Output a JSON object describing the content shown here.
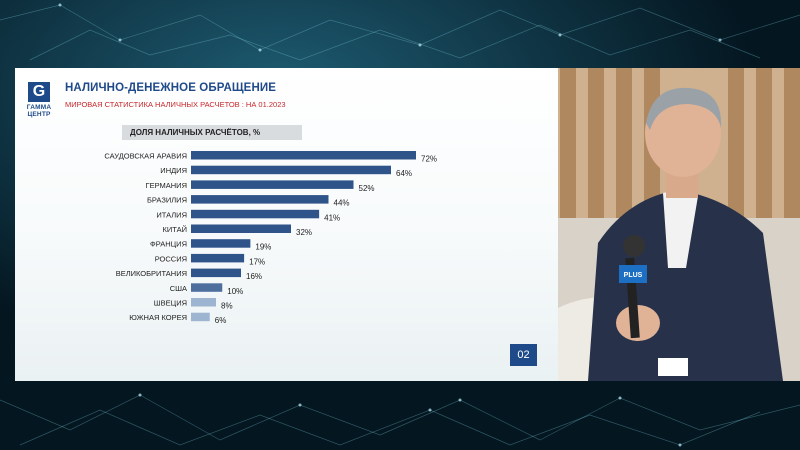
{
  "slide": {
    "logo_text": "ГАММА ЦЕНТР",
    "title": "НАЛИЧНО-ДЕНЕЖНОЕ ОБРАЩЕНИЕ",
    "subtitle": "МИРОВАЯ СТАТИСТИКА НАЛИЧНЫХ РАСЧЕТОВ : НА 01.2023",
    "chart_header": "ДОЛЯ НАЛИЧНЫХ РАСЧЁТОВ, %",
    "page_number": "02"
  },
  "video": {
    "mic_label": "PLUS"
  },
  "chart_data": {
    "type": "bar",
    "orientation": "horizontal",
    "title": "ДОЛЯ НАЛИЧНЫХ РАСЧЁТОВ, %",
    "categories": [
      "САУДОВСКАЯ АРАВИЯ",
      "ИНДИЯ",
      "ГЕРМАНИЯ",
      "БРАЗИЛИЯ",
      "ИТАЛИЯ",
      "КИТАЙ",
      "ФРАНЦИЯ",
      "РОССИЯ",
      "ВЕЛИКОБРИТАНИЯ",
      "США",
      "ШВЕЦИЯ",
      "ЮЖНАЯ КОРЕЯ"
    ],
    "values": [
      72,
      64,
      52,
      44,
      41,
      32,
      19,
      17,
      16,
      10,
      8,
      6
    ],
    "value_labels": [
      "72%",
      "64%",
      "52%",
      "44%",
      "41%",
      "32%",
      "19%",
      "17%",
      "16%",
      "10%",
      "8%",
      "6%"
    ],
    "xlim": [
      0,
      72
    ],
    "grid": false,
    "colors": {
      "dark": "#2e5489",
      "mid": "#4e6f9e",
      "light": "#9eb5d2"
    }
  }
}
